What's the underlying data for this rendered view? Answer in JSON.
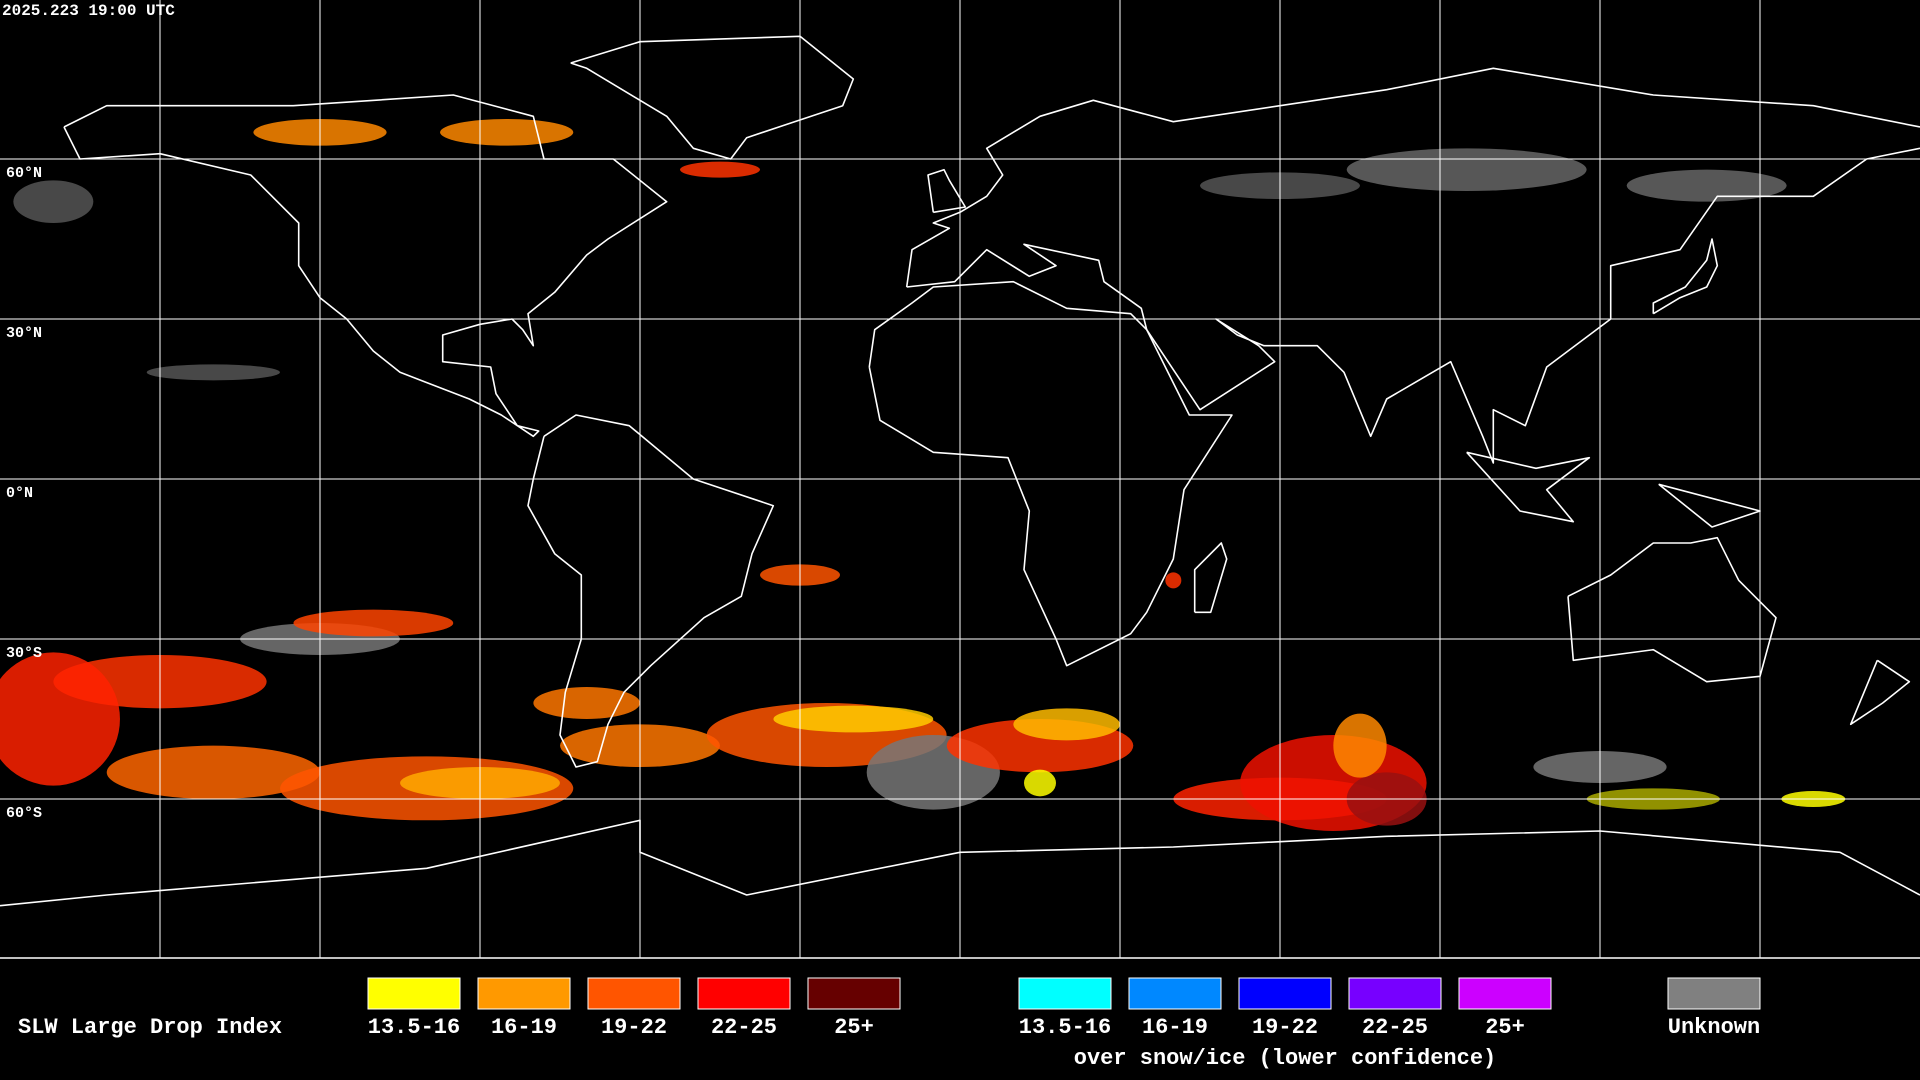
{
  "header": {
    "timestamp": "2025.223 19:00 UTC"
  },
  "map": {
    "latitude_labels": [
      "60°N",
      "30°N",
      "0°N",
      "30°S",
      "60°S"
    ]
  },
  "legend": {
    "title": "SLW Large Drop Index",
    "groups": [
      {
        "items": [
          {
            "label": "13.5-16",
            "color": "#ffff00"
          },
          {
            "label": "16-19",
            "color": "#ff9900"
          },
          {
            "label": "19-22",
            "color": "#ff5500"
          },
          {
            "label": "22-25",
            "color": "#ff0000"
          },
          {
            "label": "25+",
            "color": "#660000"
          }
        ]
      },
      {
        "items": [
          {
            "label": "13.5-16",
            "color": "#00ffff"
          },
          {
            "label": "16-19",
            "color": "#0088ff"
          },
          {
            "label": "19-22",
            "color": "#0000ff"
          },
          {
            "label": "22-25",
            "color": "#7700ff"
          },
          {
            "label": "25+",
            "color": "#cc00ff"
          }
        ],
        "caption": "over snow/ice (lower confidence)"
      },
      {
        "items": [
          {
            "label": "Unknown",
            "color": "#808080"
          }
        ]
      }
    ]
  }
}
